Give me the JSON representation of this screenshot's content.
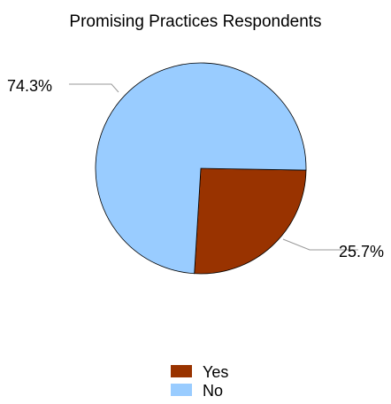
{
  "chart_data": {
    "type": "pie",
    "title": "Promising Practices Respondents",
    "categories": [
      "Yes",
      "No"
    ],
    "values": [
      25.7,
      74.3
    ],
    "data_labels": [
      "25.7%",
      "74.3%"
    ],
    "colors": [
      "#993300",
      "#99ccff"
    ],
    "legend": {
      "position": "bottom",
      "entries": [
        "Yes",
        "No"
      ]
    }
  }
}
